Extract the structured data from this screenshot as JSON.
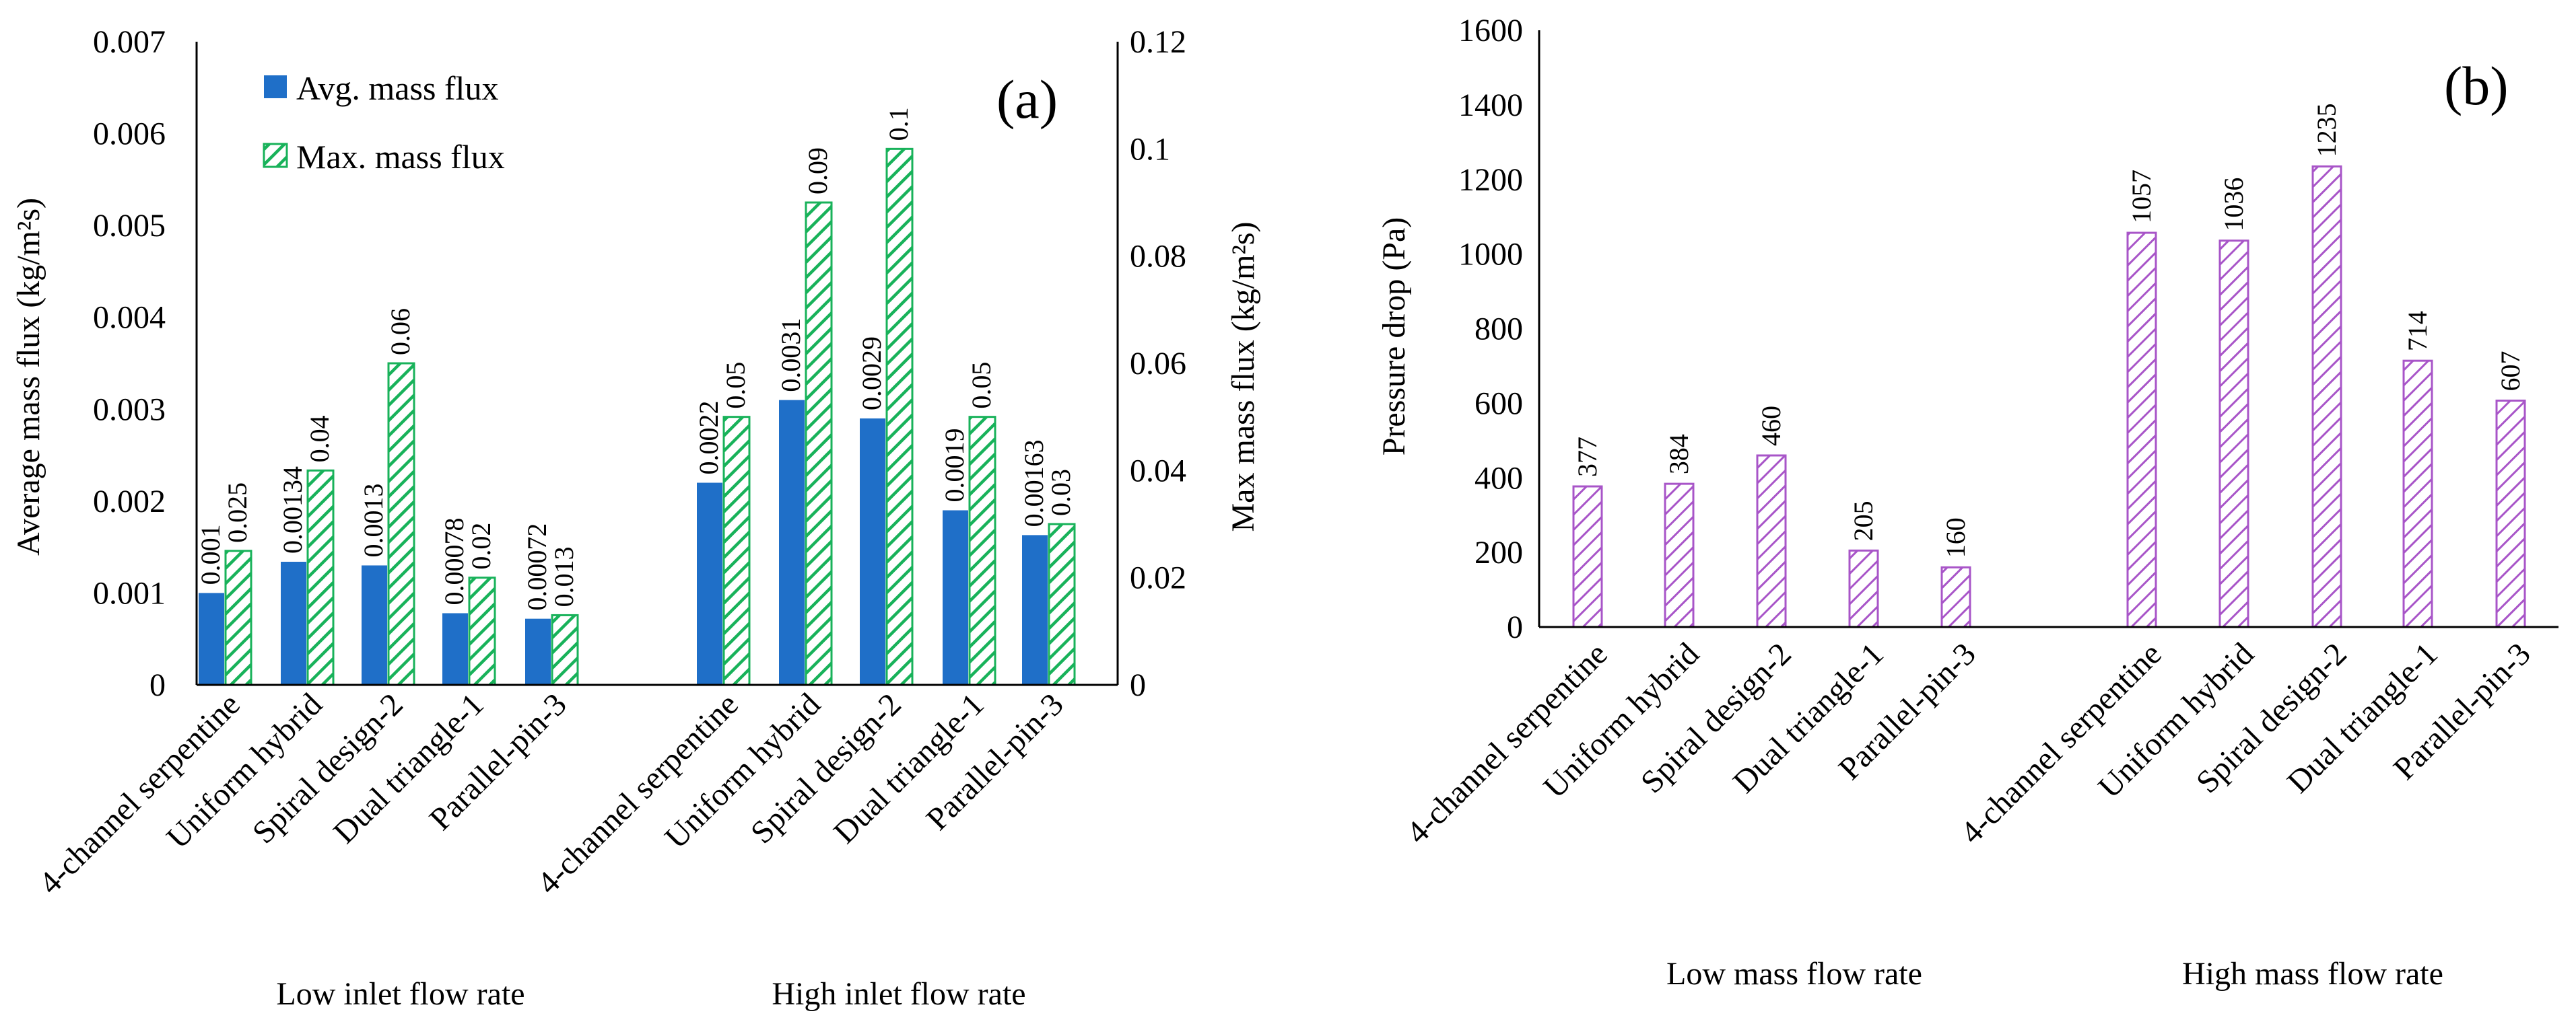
{
  "colors": {
    "avg_fill": "#1f6fc8",
    "max_hatch": "#18b25a",
    "dp_hatch": "#a855c8",
    "axis": "#000000"
  },
  "chart_data": [
    {
      "panel": "(a)",
      "type": "bar",
      "categories": [
        "4-channel serpentine",
        "Uniform hybrid",
        "Spiral design-2",
        "Dual triangle-1",
        "Parallel-pin-3"
      ],
      "groups": [
        "Low inlet flow rate",
        "High inlet flow rate"
      ],
      "ylabel": "Average mass flux (kg/m²s)",
      "ylabel_sup": "2",
      "y2label": "Max mass flux (kg/m²s)",
      "ylim": [
        0,
        0.007
      ],
      "y2lim": [
        0,
        0.12
      ],
      "yticks": [
        "0",
        "0.001",
        "0.002",
        "0.003",
        "0.004",
        "0.005",
        "0.006",
        "0.007"
      ],
      "y2ticks": [
        "0",
        "0.02",
        "0.04",
        "0.06",
        "0.08",
        "0.1",
        "0.12"
      ],
      "legend_position": "top-left",
      "series": [
        {
          "name": "Avg. mass flux",
          "axis": "left",
          "low": [
            0.001,
            0.00134,
            0.0013,
            0.00078,
            0.00072
          ],
          "high": [
            0.0022,
            0.0031,
            0.0029,
            0.0019,
            0.00163
          ],
          "low_labels": [
            "0.001",
            "0.00134",
            "0.0013",
            "0.00078",
            "0.00072"
          ],
          "high_labels": [
            "0.0022",
            "0.0031",
            "0.0029",
            "0.0019",
            "0.00163"
          ]
        },
        {
          "name": "Max. mass flux",
          "axis": "right",
          "low": [
            0.025,
            0.04,
            0.06,
            0.02,
            0.013
          ],
          "high": [
            0.05,
            0.09,
            0.1,
            0.05,
            0.03
          ],
          "low_labels": [
            "0.025",
            "0.04",
            "0.06",
            "0.02",
            "0.013"
          ],
          "high_labels": [
            "0.05",
            "0.09",
            "0.1",
            "0.05",
            "0.03"
          ]
        }
      ]
    },
    {
      "panel": "(b)",
      "type": "bar",
      "categories": [
        "4-channel serpentine",
        "Uniform hybrid",
        "Spiral design-2",
        "Dual triangle-1",
        "Parallel-pin-3"
      ],
      "groups": [
        "Low mass flow rate",
        "High mass flow rate"
      ],
      "ylabel": "Pressure drop (Pa)",
      "ylim": [
        0,
        1600
      ],
      "yticks": [
        "0",
        "200",
        "400",
        "600",
        "800",
        "1000",
        "1200",
        "1400",
        "1600"
      ],
      "series": [
        {
          "name": "Pressure drop",
          "low": [
            377,
            384,
            460,
            205,
            160
          ],
          "high": [
            1057,
            1036,
            1235,
            714,
            607
          ],
          "low_labels": [
            "377",
            "384",
            "460",
            "205",
            "160"
          ],
          "high_labels": [
            "1057",
            "1036",
            "1235",
            "714",
            "607"
          ]
        }
      ]
    }
  ]
}
